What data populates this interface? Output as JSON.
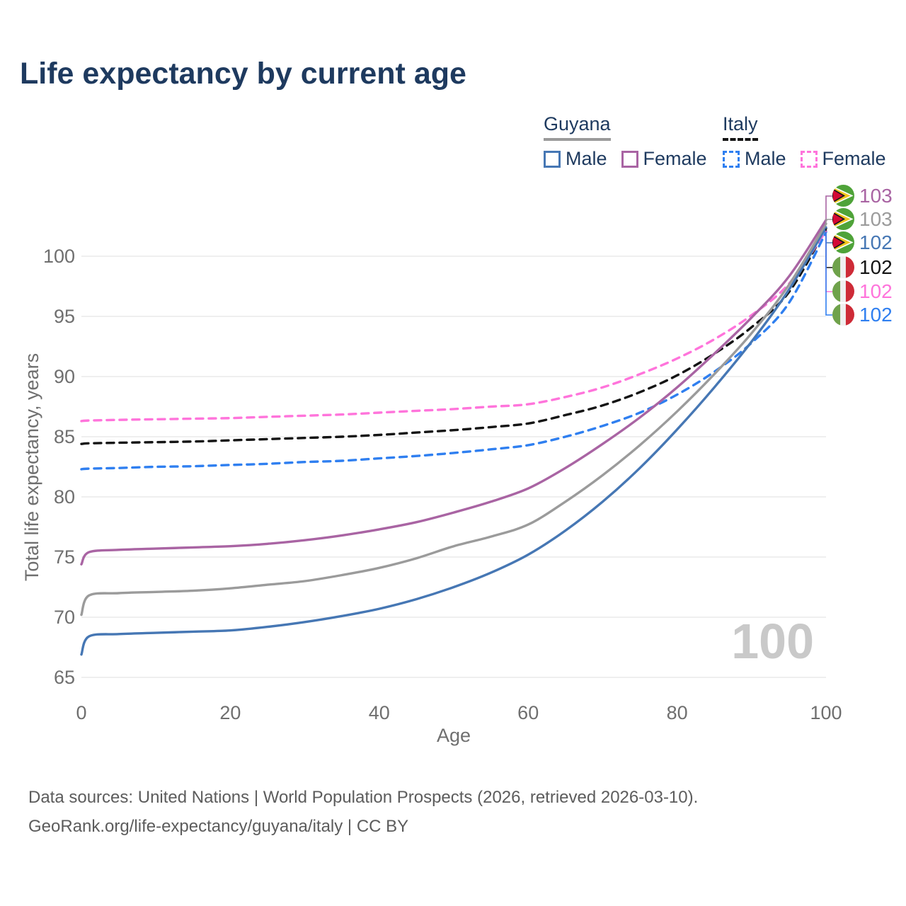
{
  "title": "Life expectancy by current age",
  "watermark": {
    "value": "100"
  },
  "legend": {
    "groups": [
      {
        "name": "Guyana",
        "line_style": "solid",
        "underline_color": "#9a9a9a",
        "items": [
          {
            "label": "Male",
            "color": "#4677b4"
          },
          {
            "label": "Female",
            "color": "#a964a3"
          }
        ]
      },
      {
        "name": "Italy",
        "line_style": "dashed",
        "underline_color": "#141414",
        "items": [
          {
            "label": "Male",
            "color": "#2f7ff0"
          },
          {
            "label": "Female",
            "color": "#ff74db"
          }
        ]
      }
    ]
  },
  "footer": {
    "line1": "Data sources: United Nations | World Population Prospects (2026, retrieved 2026-03-10).",
    "line2": "GeoRank.org/life-expectancy/guyana/italy | CC BY"
  },
  "colors": {
    "title_text": "#1e3a5f",
    "axis_text": "#6f6f6f",
    "gridline": "#eaeaea",
    "watermark": "#c9c9c9"
  },
  "chart_data": {
    "type": "line",
    "title": "Life expectancy by current age",
    "xlabel": "Age",
    "ylabel": "Total life expectancy, years",
    "xlim": [
      0,
      100
    ],
    "ylim": [
      65,
      104
    ],
    "x_ticks": [
      0,
      20,
      40,
      60,
      80,
      100
    ],
    "y_ticks": [
      65,
      70,
      75,
      80,
      85,
      90,
      95,
      100
    ],
    "grid": "horizontal",
    "legend_position": "top-right",
    "ages": [
      0,
      1,
      5,
      10,
      15,
      20,
      25,
      30,
      35,
      40,
      45,
      50,
      55,
      60,
      65,
      70,
      75,
      80,
      85,
      90,
      95,
      100
    ],
    "series": [
      {
        "name": "Guyana Female",
        "country": "Guyana",
        "sex": "Female",
        "flag": "guyana",
        "color": "#a964a3",
        "dashed": false,
        "end_label": "103",
        "values": [
          74.4,
          75.4,
          75.6,
          75.7,
          75.8,
          75.9,
          76.1,
          76.4,
          76.8,
          77.3,
          77.9,
          78.7,
          79.6,
          80.7,
          82.4,
          84.4,
          86.6,
          89.1,
          91.9,
          94.9,
          98.3,
          103.0
        ]
      },
      {
        "name": "Guyana Both sexes",
        "country": "Guyana",
        "sex": "Both",
        "flag": "guyana",
        "color": "#9b9b9b",
        "dashed": false,
        "end_label": "103",
        "values": [
          70.2,
          71.8,
          72.0,
          72.1,
          72.2,
          72.4,
          72.7,
          73.0,
          73.5,
          74.1,
          74.9,
          75.9,
          76.7,
          77.7,
          79.6,
          81.8,
          84.3,
          87.1,
          90.2,
          93.6,
          97.6,
          102.7
        ]
      },
      {
        "name": "Guyana Male",
        "country": "Guyana",
        "sex": "Male",
        "flag": "guyana",
        "color": "#4677b4",
        "dashed": false,
        "end_label": "102",
        "values": [
          66.9,
          68.4,
          68.6,
          68.7,
          68.8,
          68.9,
          69.2,
          69.6,
          70.1,
          70.7,
          71.5,
          72.5,
          73.7,
          75.2,
          77.2,
          79.6,
          82.4,
          85.6,
          89.1,
          92.9,
          97.2,
          102.4
        ]
      },
      {
        "name": "Italy Both sexes",
        "country": "Italy",
        "sex": "Both",
        "flag": "italy",
        "color": "#141414",
        "dashed": true,
        "end_label": "102",
        "values": [
          84.4,
          84.45,
          84.5,
          84.55,
          84.6,
          84.7,
          84.8,
          84.9,
          85.0,
          85.15,
          85.35,
          85.55,
          85.8,
          86.1,
          86.8,
          87.6,
          88.7,
          90.1,
          91.9,
          94.1,
          97.0,
          102.3
        ]
      },
      {
        "name": "Italy Female",
        "country": "Italy",
        "sex": "Female",
        "flag": "italy",
        "color": "#ff74db",
        "dashed": true,
        "end_label": "102",
        "values": [
          86.3,
          86.35,
          86.4,
          86.45,
          86.5,
          86.55,
          86.65,
          86.75,
          86.85,
          87.0,
          87.15,
          87.3,
          87.5,
          87.7,
          88.3,
          89.1,
          90.2,
          91.5,
          93.1,
          95.1,
          97.7,
          102.1
        ]
      },
      {
        "name": "Italy Male",
        "country": "Italy",
        "sex": "Male",
        "flag": "italy",
        "color": "#2f7ff0",
        "dashed": true,
        "end_label": "102",
        "values": [
          82.3,
          82.35,
          82.4,
          82.5,
          82.55,
          82.65,
          82.75,
          82.9,
          83.0,
          83.2,
          83.4,
          83.65,
          83.95,
          84.3,
          85.0,
          85.9,
          87.0,
          88.5,
          90.4,
          92.8,
          96.1,
          102.0
        ]
      }
    ]
  }
}
